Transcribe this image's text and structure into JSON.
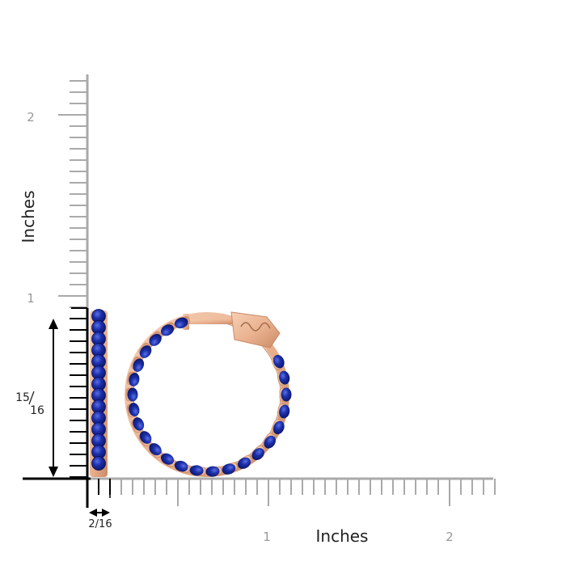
{
  "y_axis": {
    "label": "Inches",
    "tick_labels": [
      "2",
      "1"
    ]
  },
  "x_axis": {
    "label": "Inches",
    "tick_labels": [
      "1",
      "2"
    ]
  },
  "dimensions": {
    "height_whole": "15",
    "height_den": "16",
    "width": "2/16"
  },
  "colors": {
    "gold": "#e9b08e",
    "gold_dark": "#c98a66",
    "sapphire": "#1b2fa8",
    "ruler": "#aaaaaa",
    "label": "#999999"
  },
  "product": {
    "type": "inside-out sapphire hoop earring",
    "icons": [
      "side-profile",
      "front-view"
    ]
  }
}
